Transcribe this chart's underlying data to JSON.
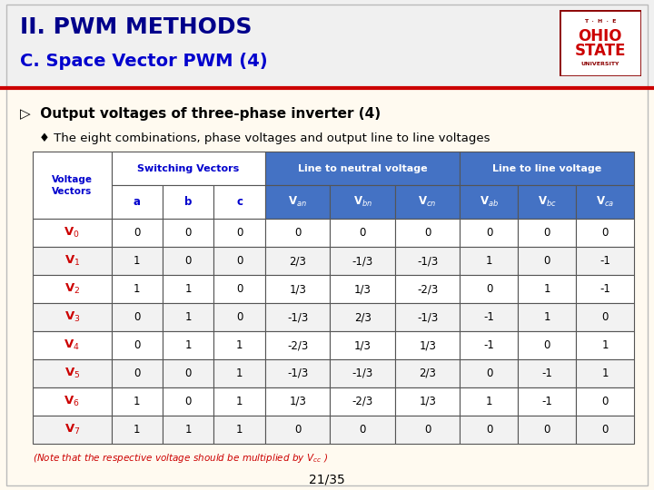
{
  "title1": "II. PWM METHODS",
  "title2": "C. Space Vector PWM (4)",
  "heading": "▷  Output voltages of three-phase inverter (4)",
  "subheading": "♦ The eight combinations, phase voltages and output line to line voltages",
  "note": "(Note that the respective voltage should be multiplied by V",
  "note_sub": "cc",
  "note_end": " )",
  "page": "21/35",
  "bg_color": "#FFFAF0",
  "header_bg1": "#FFFFFF",
  "header_bg2": "#4472C4",
  "col_header1_color": "#0000CD",
  "col_header2_color": "#FFFFFF",
  "row_label_color": "#CC0000",
  "title1_color": "#00008B",
  "title2_color": "#0000CD",
  "note_color": "#CC0000",
  "row_labels": [
    "V0",
    "V1",
    "V2",
    "V3",
    "V4",
    "V5",
    "V6",
    "V7"
  ],
  "table_data": [
    [
      0,
      0,
      0,
      "0",
      "0",
      "0",
      0,
      0,
      0
    ],
    [
      1,
      0,
      0,
      "2/3",
      "-1/3",
      "-1/3",
      1,
      0,
      -1
    ],
    [
      1,
      1,
      0,
      "1/3",
      "1/3",
      "-2/3",
      0,
      1,
      -1
    ],
    [
      0,
      1,
      0,
      "-1/3",
      "2/3",
      "-1/3",
      -1,
      1,
      0
    ],
    [
      0,
      1,
      1,
      "-2/3",
      "1/3",
      "1/3",
      -1,
      0,
      1
    ],
    [
      0,
      0,
      1,
      "-1/3",
      "-1/3",
      "2/3",
      0,
      -1,
      1
    ],
    [
      1,
      0,
      1,
      "1/3",
      "-2/3",
      "1/3",
      1,
      -1,
      0
    ],
    [
      1,
      1,
      1,
      "0",
      "0",
      "0",
      0,
      0,
      0
    ]
  ]
}
